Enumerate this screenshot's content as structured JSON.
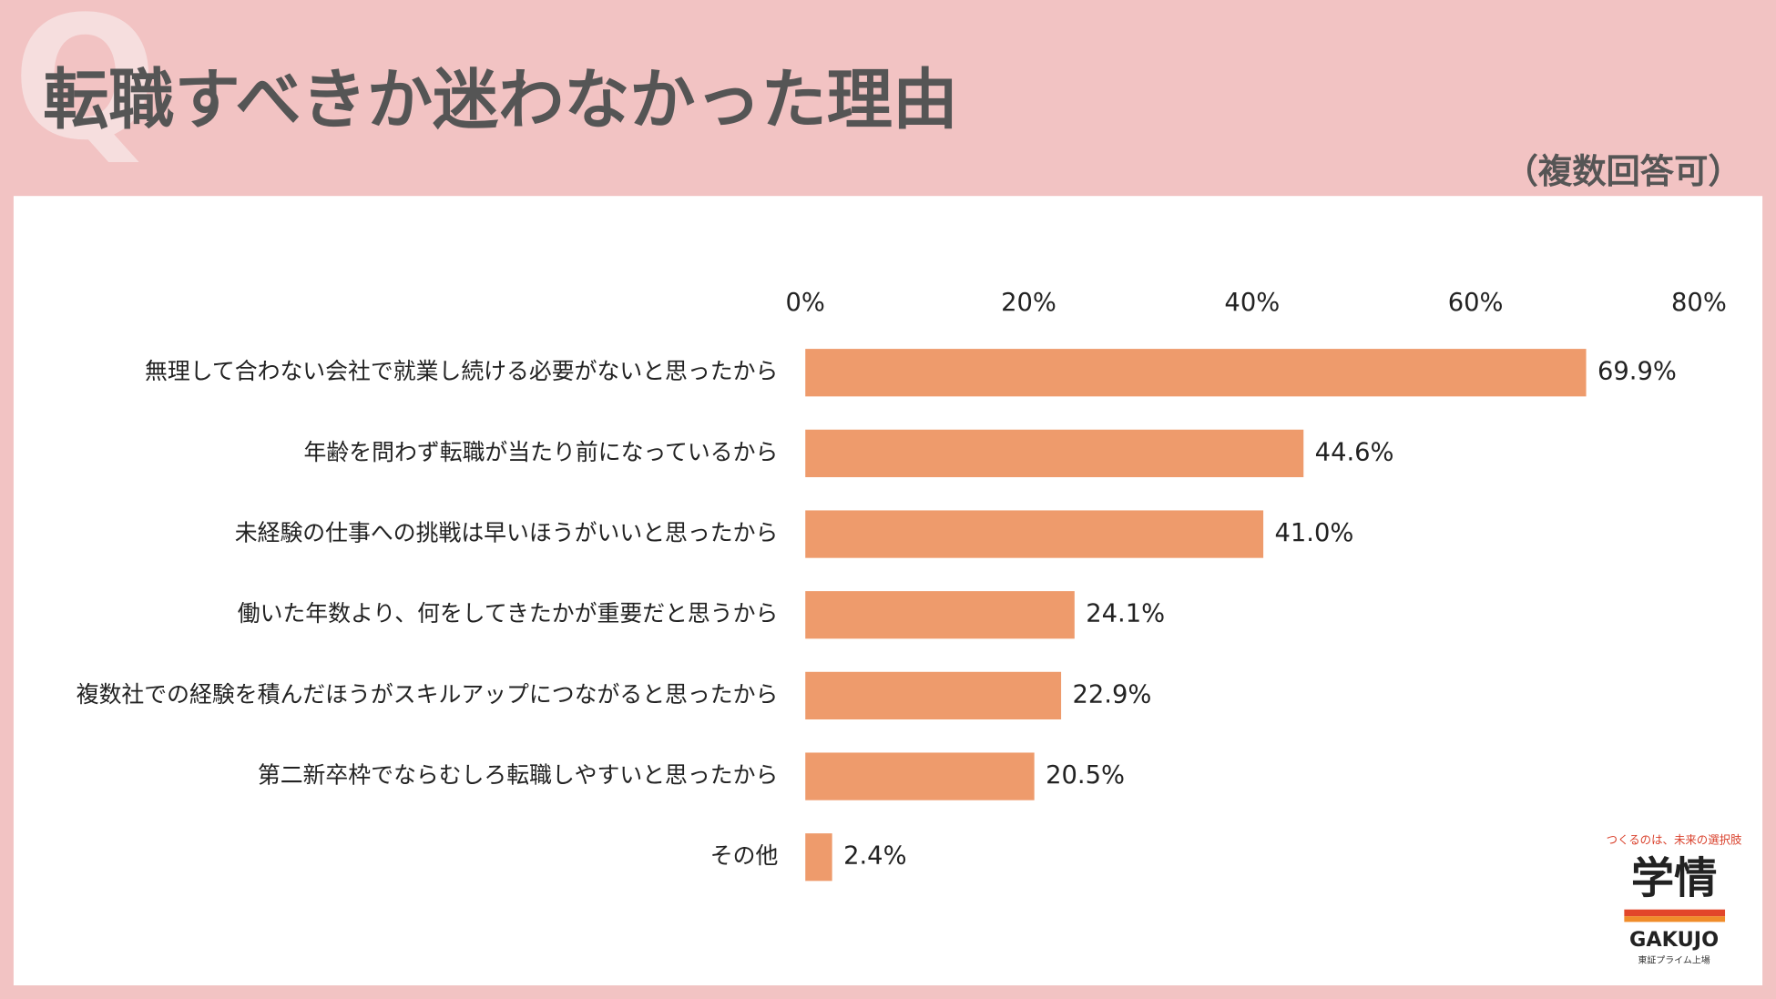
{
  "chart_data": {
    "type": "bar",
    "orientation": "horizontal",
    "title": "転職すべきか迷わなかった理由",
    "subtitle": "（複数回答可）",
    "categories": [
      "無理して合わない会社で就業し続ける必要がないと思ったから",
      "年齢を問わず転職が当たり前になっているから",
      "未経験の仕事への挑戦は早いほうがいいと思ったから",
      "働いた年数より、何をしてきたかが重要だと思うから",
      "複数社での経験を積んだほうがスキルアップにつながると思ったから",
      "第二新卒枠でならむしろ転職しやすいと思ったから",
      "その他"
    ],
    "values": [
      69.9,
      44.6,
      41.0,
      24.1,
      22.9,
      20.5,
      2.4
    ],
    "value_labels": [
      "69.9%",
      "44.6%",
      "41.0%",
      "24.1%",
      "22.9%",
      "20.5%",
      "2.4%"
    ],
    "color": "#ee9b6c",
    "xlim": [
      0,
      80
    ],
    "xticks": [
      {
        "value": 0,
        "label": "0%"
      },
      {
        "value": 20,
        "label": "20%"
      },
      {
        "value": 40,
        "label": "40%"
      },
      {
        "value": 60,
        "label": "60%"
      },
      {
        "value": 80,
        "label": "80%"
      }
    ],
    "grid": false
  },
  "logo": {
    "tagline": "つくるのは、未来の選択肢",
    "name": "学情",
    "roman": "GAKUJO",
    "listing": "東証プライム上場"
  }
}
